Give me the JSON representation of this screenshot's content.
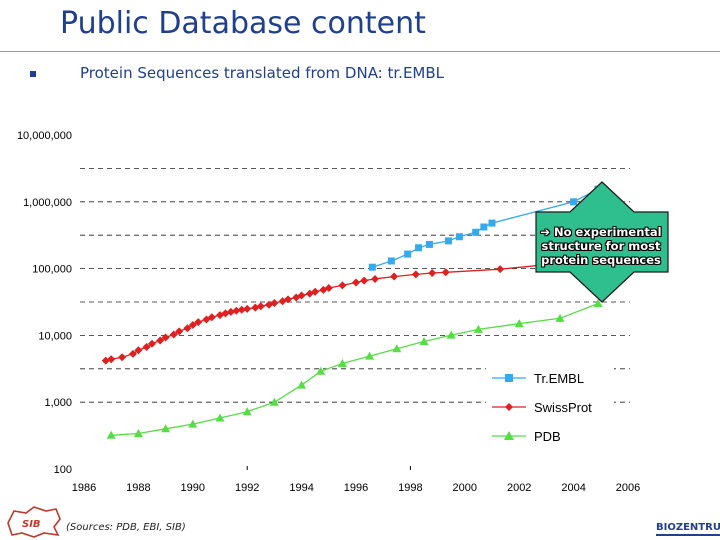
{
  "slide": {
    "title": "Public Database content",
    "bullet": "Protein Sequences translated from DNA: tr.EMBL",
    "callout": "➔ No experimental structure for most protein sequences",
    "sources": "(Sources: PDB, EBI, SIB)",
    "logo_left_text": "SIB",
    "logo_right_text": "BIOZENTRUM"
  },
  "chart_data": {
    "type": "line",
    "scale": "log",
    "xlim": [
      1986,
      2006
    ],
    "ylim": [
      100,
      10000000
    ],
    "x_ticks": [
      "1986",
      "1988",
      "1990",
      "1992",
      "1994",
      "1996",
      "1998",
      "2000",
      "2002",
      "2004",
      "2006"
    ],
    "y_ticks": [
      "100",
      "1,000",
      "10,000",
      "100,000",
      "1,000,000",
      "10,000,000"
    ],
    "legend_position": "lower-right",
    "series": [
      {
        "name": "Tr.EMBL",
        "color": "#33aaee",
        "marker": "square",
        "points": [
          [
            1996.6,
            105000
          ],
          [
            1997.3,
            130000
          ],
          [
            1997.9,
            165000
          ],
          [
            1998.3,
            205000
          ],
          [
            1998.7,
            230000
          ],
          [
            1999.4,
            260000
          ],
          [
            1999.8,
            300000
          ],
          [
            2000.4,
            350000
          ],
          [
            2000.7,
            420000
          ],
          [
            2001.0,
            480000
          ],
          [
            2004.0,
            1000000
          ],
          [
            2004.9,
            1550000
          ]
        ]
      },
      {
        "name": "SwissProt",
        "color": "#e02020",
        "marker": "diamond",
        "points": [
          [
            1986.8,
            4200
          ],
          [
            1987.0,
            4400
          ],
          [
            1987.4,
            4700
          ],
          [
            1987.8,
            5300
          ],
          [
            1988.0,
            6000
          ],
          [
            1988.3,
            6700
          ],
          [
            1988.5,
            7500
          ],
          [
            1988.8,
            8400
          ],
          [
            1989.0,
            9300
          ],
          [
            1989.3,
            10300
          ],
          [
            1989.5,
            11500
          ],
          [
            1989.8,
            12800
          ],
          [
            1990.0,
            14300
          ],
          [
            1990.2,
            15800
          ],
          [
            1990.5,
            17300
          ],
          [
            1990.7,
            18700
          ],
          [
            1991.0,
            20100
          ],
          [
            1991.2,
            21400
          ],
          [
            1991.4,
            22500
          ],
          [
            1991.6,
            23400
          ],
          [
            1991.8,
            24200
          ],
          [
            1992.0,
            25000
          ],
          [
            1992.3,
            26100
          ],
          [
            1992.5,
            27300
          ],
          [
            1992.8,
            28800
          ],
          [
            1993.0,
            30500
          ],
          [
            1993.3,
            32400
          ],
          [
            1993.5,
            34600
          ],
          [
            1993.8,
            37000
          ],
          [
            1994.0,
            39500
          ],
          [
            1994.3,
            42200
          ],
          [
            1994.5,
            45000
          ],
          [
            1994.8,
            48000
          ],
          [
            1995.0,
            51200
          ],
          [
            1995.5,
            56000
          ],
          [
            1996.0,
            62000
          ],
          [
            1996.3,
            66000
          ],
          [
            1996.7,
            70000
          ],
          [
            1997.4,
            76000
          ],
          [
            1998.2,
            82000
          ],
          [
            1998.8,
            86000
          ],
          [
            1999.3,
            88000
          ],
          [
            2001.3,
            98000
          ],
          [
            2003.5,
            120000
          ],
          [
            2004.9,
            170000
          ]
        ]
      },
      {
        "name": "PDB",
        "color": "#55dd44",
        "marker": "triangle",
        "points": [
          [
            1987.0,
            320
          ],
          [
            1988.0,
            340
          ],
          [
            1989.0,
            400
          ],
          [
            1990.0,
            470
          ],
          [
            1991.0,
            580
          ],
          [
            1992.0,
            720
          ],
          [
            1993.0,
            1000
          ],
          [
            1994.0,
            1800
          ],
          [
            1994.7,
            2900
          ],
          [
            1995.5,
            3800
          ],
          [
            1996.5,
            4900
          ],
          [
            1997.5,
            6300
          ],
          [
            1998.5,
            8100
          ],
          [
            1999.5,
            10100
          ],
          [
            2000.5,
            12300
          ],
          [
            2002.0,
            15000
          ],
          [
            2003.5,
            18000
          ],
          [
            2004.9,
            30000
          ]
        ]
      }
    ]
  }
}
